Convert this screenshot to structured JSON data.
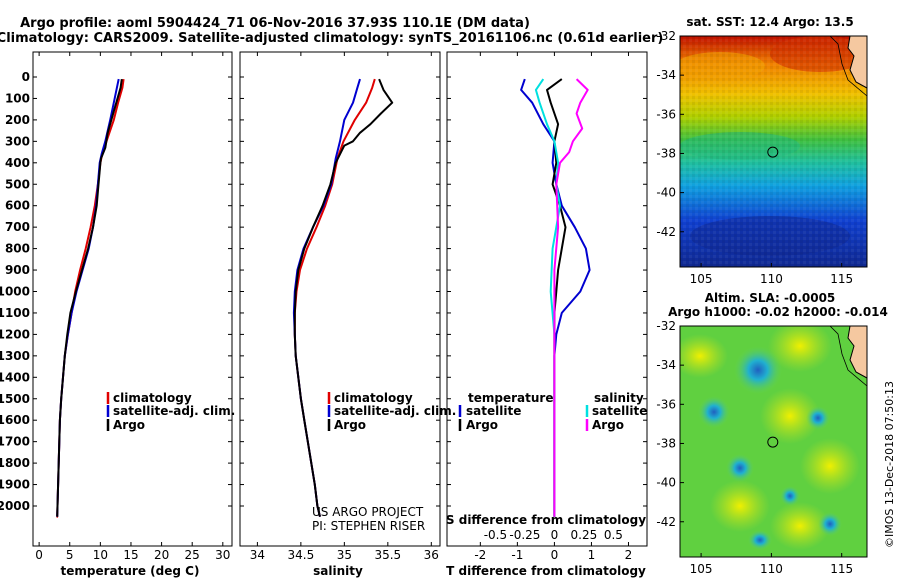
{
  "header": {
    "line1": "Argo profile: aoml 5904424_71 06-Nov-2016 37.93S 110.1E (DM data)",
    "line2": "Climatology: CARS2009. Satellite-adjusted climatology: synTS_20161106.nc (0.61d earlier)"
  },
  "colors": {
    "climatology": "#e00000",
    "satellite": "#0000d0",
    "argo": "#000000",
    "sat_salinity": "#00e0e0",
    "argo_salinity": "#ff00ff"
  },
  "y_axis": {
    "ticks": [
      "0",
      "100",
      "200",
      "300",
      "400",
      "500",
      "600",
      "700",
      "800",
      "900",
      "1000",
      "1100",
      "1200",
      "1300",
      "1400",
      "1500",
      "1600",
      "1700",
      "1800",
      "1900",
      "2000"
    ]
  },
  "legend_left": [
    "climatology",
    "satellite-adj. clim.",
    "Argo"
  ],
  "legend_mid": [
    "climatology",
    "satellite-adj. clim.",
    "Argo"
  ],
  "legend_right": {
    "temp_title": "temperature",
    "sal_title": "salinity",
    "temp_items": [
      "satellite",
      "Argo"
    ],
    "sal_items": [
      "satellite",
      "Argo"
    ]
  },
  "credit": {
    "line1": "US ARGO PROJECT",
    "line2": "PI: STEPHEN RISER"
  },
  "s_diff_title": "S difference from climatology",
  "maps": {
    "top_title": "sat. SST: 12.4 Argo: 13.5",
    "bottom_title1": "Altim. SLA: -0.0005",
    "bottom_title2": "Argo h1000: -0.02 h2000: -0.014",
    "lat_ticks": [
      "-32",
      "-34",
      "-36",
      "-38",
      "-40",
      "-42"
    ],
    "lon_ticks": [
      "105",
      "110",
      "115"
    ],
    "float_marker": {
      "lon": 110.1,
      "lat": -37.93
    }
  },
  "watermark": "©IMOS 13-Dec-2018 07:50:13",
  "chart_data": [
    {
      "type": "line",
      "xlabel": "temperature (deg C)",
      "xticks": [
        "0",
        "5",
        "10",
        "15",
        "20",
        "25",
        "30"
      ],
      "xlim": [
        -1,
        31.5
      ],
      "ylim": [
        2050,
        0
      ],
      "grid": false,
      "series": [
        {
          "name": "climatology",
          "color": "#e00000",
          "x": [
            13.8,
            13.6,
            12.9,
            12.2,
            11.0,
            10.3,
            10.0,
            9.6,
            9.1,
            8.4,
            7.6,
            6.7,
            5.9,
            5.3,
            4.7,
            4.2,
            3.9,
            3.6,
            3.4,
            3.3,
            3.2,
            3.1,
            3.0,
            2.95,
            2.9,
            2.85
          ],
          "y": [
            10,
            50,
            120,
            200,
            300,
            360,
            400,
            500,
            600,
            700,
            800,
            900,
            1000,
            1100,
            1200,
            1300,
            1400,
            1500,
            1600,
            1700,
            1800,
            1900,
            2000,
            2050,
            2050,
            2050
          ]
        },
        {
          "name": "satellite-adj. clim.",
          "color": "#0000d0",
          "x": [
            13.0,
            12.7,
            12.2,
            11.6,
            10.8,
            10.2,
            9.9,
            9.6,
            9.3,
            8.8,
            8.1,
            7.1,
            6.1,
            5.3,
            4.7,
            4.2,
            3.9,
            3.6,
            3.4,
            3.3,
            3.2,
            3.1,
            3.0,
            2.95
          ],
          "y": [
            10,
            50,
            120,
            200,
            300,
            360,
            400,
            500,
            600,
            700,
            800,
            900,
            1000,
            1100,
            1200,
            1300,
            1400,
            1500,
            1600,
            1700,
            1800,
            1900,
            2000,
            2050
          ]
        },
        {
          "name": "Argo",
          "color": "#000000",
          "x": [
            13.5,
            13.3,
            12.6,
            12.2,
            11.2,
            10.8,
            10.1,
            10.0,
            9.7,
            9.4,
            8.8,
            8.0,
            7.0,
            6.0,
            5.1,
            4.6,
            4.2,
            3.9,
            3.6,
            3.4,
            3.3,
            3.2,
            3.1,
            3.0,
            2.95
          ],
          "y": [
            10,
            50,
            120,
            160,
            260,
            330,
            380,
            400,
            500,
            600,
            700,
            800,
            900,
            1000,
            1100,
            1200,
            1300,
            1400,
            1500,
            1600,
            1700,
            1800,
            1900,
            2000,
            2050
          ]
        }
      ]
    },
    {
      "type": "line",
      "xlabel": "salinity",
      "xticks": [
        "34",
        "34.5",
        "35",
        "35.5",
        "36"
      ],
      "xlim": [
        33.8,
        36.1
      ],
      "ylim": [
        2050,
        0
      ],
      "grid": false,
      "series": [
        {
          "name": "climatology",
          "color": "#e00000",
          "x": [
            35.35,
            35.32,
            35.25,
            35.12,
            34.99,
            34.92,
            34.86,
            34.78,
            34.68,
            34.57,
            34.49,
            34.45,
            34.43,
            34.43,
            34.44,
            34.47,
            34.5,
            34.54,
            34.58,
            34.62,
            34.66,
            34.69,
            34.72
          ],
          "y": [
            10,
            50,
            120,
            200,
            300,
            380,
            500,
            600,
            700,
            800,
            900,
            1000,
            1100,
            1200,
            1300,
            1400,
            1500,
            1600,
            1700,
            1800,
            1900,
            2000,
            2050
          ]
        },
        {
          "name": "satellite-adj. clim.",
          "color": "#0000d0",
          "x": [
            35.18,
            35.15,
            35.1,
            35.0,
            34.95,
            34.9,
            34.85,
            34.76,
            34.64,
            34.53,
            34.46,
            34.43,
            34.42,
            34.43,
            34.44,
            34.47,
            34.5,
            34.54,
            34.58,
            34.62,
            34.66,
            34.69,
            34.72
          ],
          "y": [
            10,
            50,
            120,
            200,
            300,
            380,
            500,
            600,
            700,
            800,
            900,
            1000,
            1100,
            1200,
            1300,
            1400,
            1500,
            1600,
            1700,
            1800,
            1900,
            2000,
            2050
          ]
        },
        {
          "name": "Argo",
          "color": "#000000",
          "x": [
            35.4,
            35.45,
            35.55,
            35.42,
            35.3,
            35.18,
            35.1,
            35.0,
            34.95,
            34.9,
            34.84,
            34.75,
            34.64,
            34.54,
            34.47,
            34.44,
            34.43,
            34.43,
            34.44,
            34.47,
            34.5,
            34.54,
            34.58,
            34.62,
            34.66,
            34.69,
            34.72
          ],
          "y": [
            10,
            60,
            120,
            170,
            220,
            260,
            300,
            320,
            360,
            400,
            500,
            600,
            700,
            800,
            900,
            1000,
            1100,
            1200,
            1300,
            1400,
            1500,
            1600,
            1700,
            1800,
            1900,
            2000,
            2050
          ]
        }
      ]
    },
    {
      "type": "line",
      "xlabel": "T difference from climatology",
      "xticks": [
        "-2",
        "-1",
        "0",
        "1",
        "2"
      ],
      "xlim": [
        -2.9,
        2.5
      ],
      "ylim": [
        2050,
        0
      ],
      "grid": false,
      "secondary_axis": {
        "label": "S difference from climatology",
        "ticks": [
          "-0.5",
          "-0.25",
          "0",
          "0.25",
          "0.5"
        ]
      },
      "series": [
        {
          "name": "temperature satellite",
          "color": "#0000d0",
          "x": [
            -0.8,
            -0.9,
            -0.6,
            -0.3,
            0.0,
            -0.05,
            0.05,
            0.2,
            0.55,
            0.85,
            0.95,
            0.7,
            0.2,
            0.05,
            0.0,
            0.0,
            0.0,
            0.0,
            0.0,
            0.0,
            0.0,
            0.0
          ],
          "y": [
            10,
            60,
            120,
            220,
            300,
            400,
            500,
            600,
            700,
            800,
            900,
            1000,
            1100,
            1200,
            1300,
            1400,
            1500,
            1600,
            1700,
            1800,
            1900,
            2050
          ]
        },
        {
          "name": "temperature Argo",
          "color": "#000000",
          "x": [
            0.2,
            -0.2,
            -0.1,
            0.1,
            0.0,
            0.05,
            -0.05,
            0.15,
            0.3,
            0.2,
            0.1,
            0.05,
            0.0,
            0.0,
            0.0,
            0.0,
            0.0,
            0.0,
            0.0,
            0.0
          ],
          "y": [
            10,
            60,
            120,
            220,
            300,
            400,
            500,
            600,
            700,
            800,
            900,
            1000,
            1100,
            1200,
            1300,
            1400,
            1500,
            1600,
            1800,
            2050
          ]
        },
        {
          "name": "salinity satellite",
          "color": "#00e0e0",
          "x": [
            -0.3,
            -0.5,
            -0.4,
            -0.2,
            0.0,
            0.1,
            0.05,
            0.15,
            0.05,
            -0.05,
            -0.1,
            0.0,
            0.0,
            0.0,
            0.0,
            0.0,
            0.0,
            0.0
          ],
          "y": [
            10,
            60,
            120,
            220,
            300,
            400,
            500,
            600,
            700,
            800,
            1000,
            1200,
            1300,
            1400,
            1500,
            1600,
            1800,
            2050
          ]
        },
        {
          "name": "salinity Argo",
          "color": "#ff00ff",
          "x": [
            0.6,
            0.9,
            0.7,
            0.6,
            0.75,
            0.5,
            0.4,
            0.15,
            0.05,
            0.1,
            0.0,
            0.0,
            0.0,
            0.0,
            0.0
          ],
          "y": [
            10,
            60,
            120,
            170,
            240,
            300,
            350,
            400,
            500,
            700,
            900,
            1100,
            1300,
            1600,
            2050
          ]
        }
      ]
    }
  ]
}
